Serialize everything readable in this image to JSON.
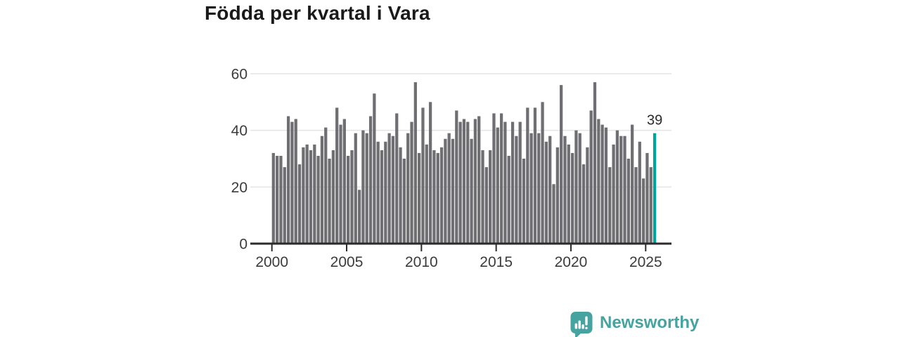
{
  "title": "Födda per kvartal i Vara",
  "chart_data": {
    "type": "bar",
    "title": "Födda per kvartal i Vara",
    "x_start": "2000 Q1",
    "x_end": "2025 Q3",
    "values": [
      32,
      31,
      31,
      27,
      45,
      43,
      44,
      28,
      34,
      35,
      33,
      35,
      31,
      38,
      41,
      30,
      33,
      48,
      42,
      44,
      31,
      33,
      39,
      19,
      40,
      39,
      45,
      53,
      36,
      33,
      36,
      39,
      38,
      46,
      34,
      30,
      39,
      43,
      57,
      32,
      48,
      35,
      50,
      33,
      32,
      34,
      37,
      39,
      37,
      47,
      43,
      44,
      43,
      37,
      44,
      45,
      33,
      27,
      33,
      46,
      41,
      46,
      43,
      31,
      43,
      38,
      43,
      30,
      48,
      39,
      48,
      39,
      50,
      36,
      38,
      21,
      34,
      56,
      38,
      35,
      32,
      40,
      39,
      28,
      34,
      47,
      57,
      44,
      42,
      41,
      27,
      35,
      40,
      38,
      38,
      30,
      42,
      27,
      36,
      23,
      32,
      27,
      39
    ],
    "highlight": {
      "index": 102,
      "quarter": "2025 Q3",
      "value": 39,
      "label": "39"
    },
    "x_tick_labels": [
      "2000",
      "2005",
      "2010",
      "2015",
      "2020",
      "2025"
    ],
    "y_ticks": [
      0,
      20,
      40,
      60
    ],
    "ylim": [
      0,
      60
    ],
    "grid": true,
    "legend": false,
    "colors": {
      "bar": "#6e6e73",
      "highlight": "#00a49d",
      "gridline": "#e4e4e4",
      "axis": "#2b2b2b",
      "tick_label": "#3b3b3b",
      "annotation": "#2b2b2b"
    }
  },
  "footer": {
    "logo_text": "Newsworthy",
    "logo_color": "#46a3a0"
  }
}
